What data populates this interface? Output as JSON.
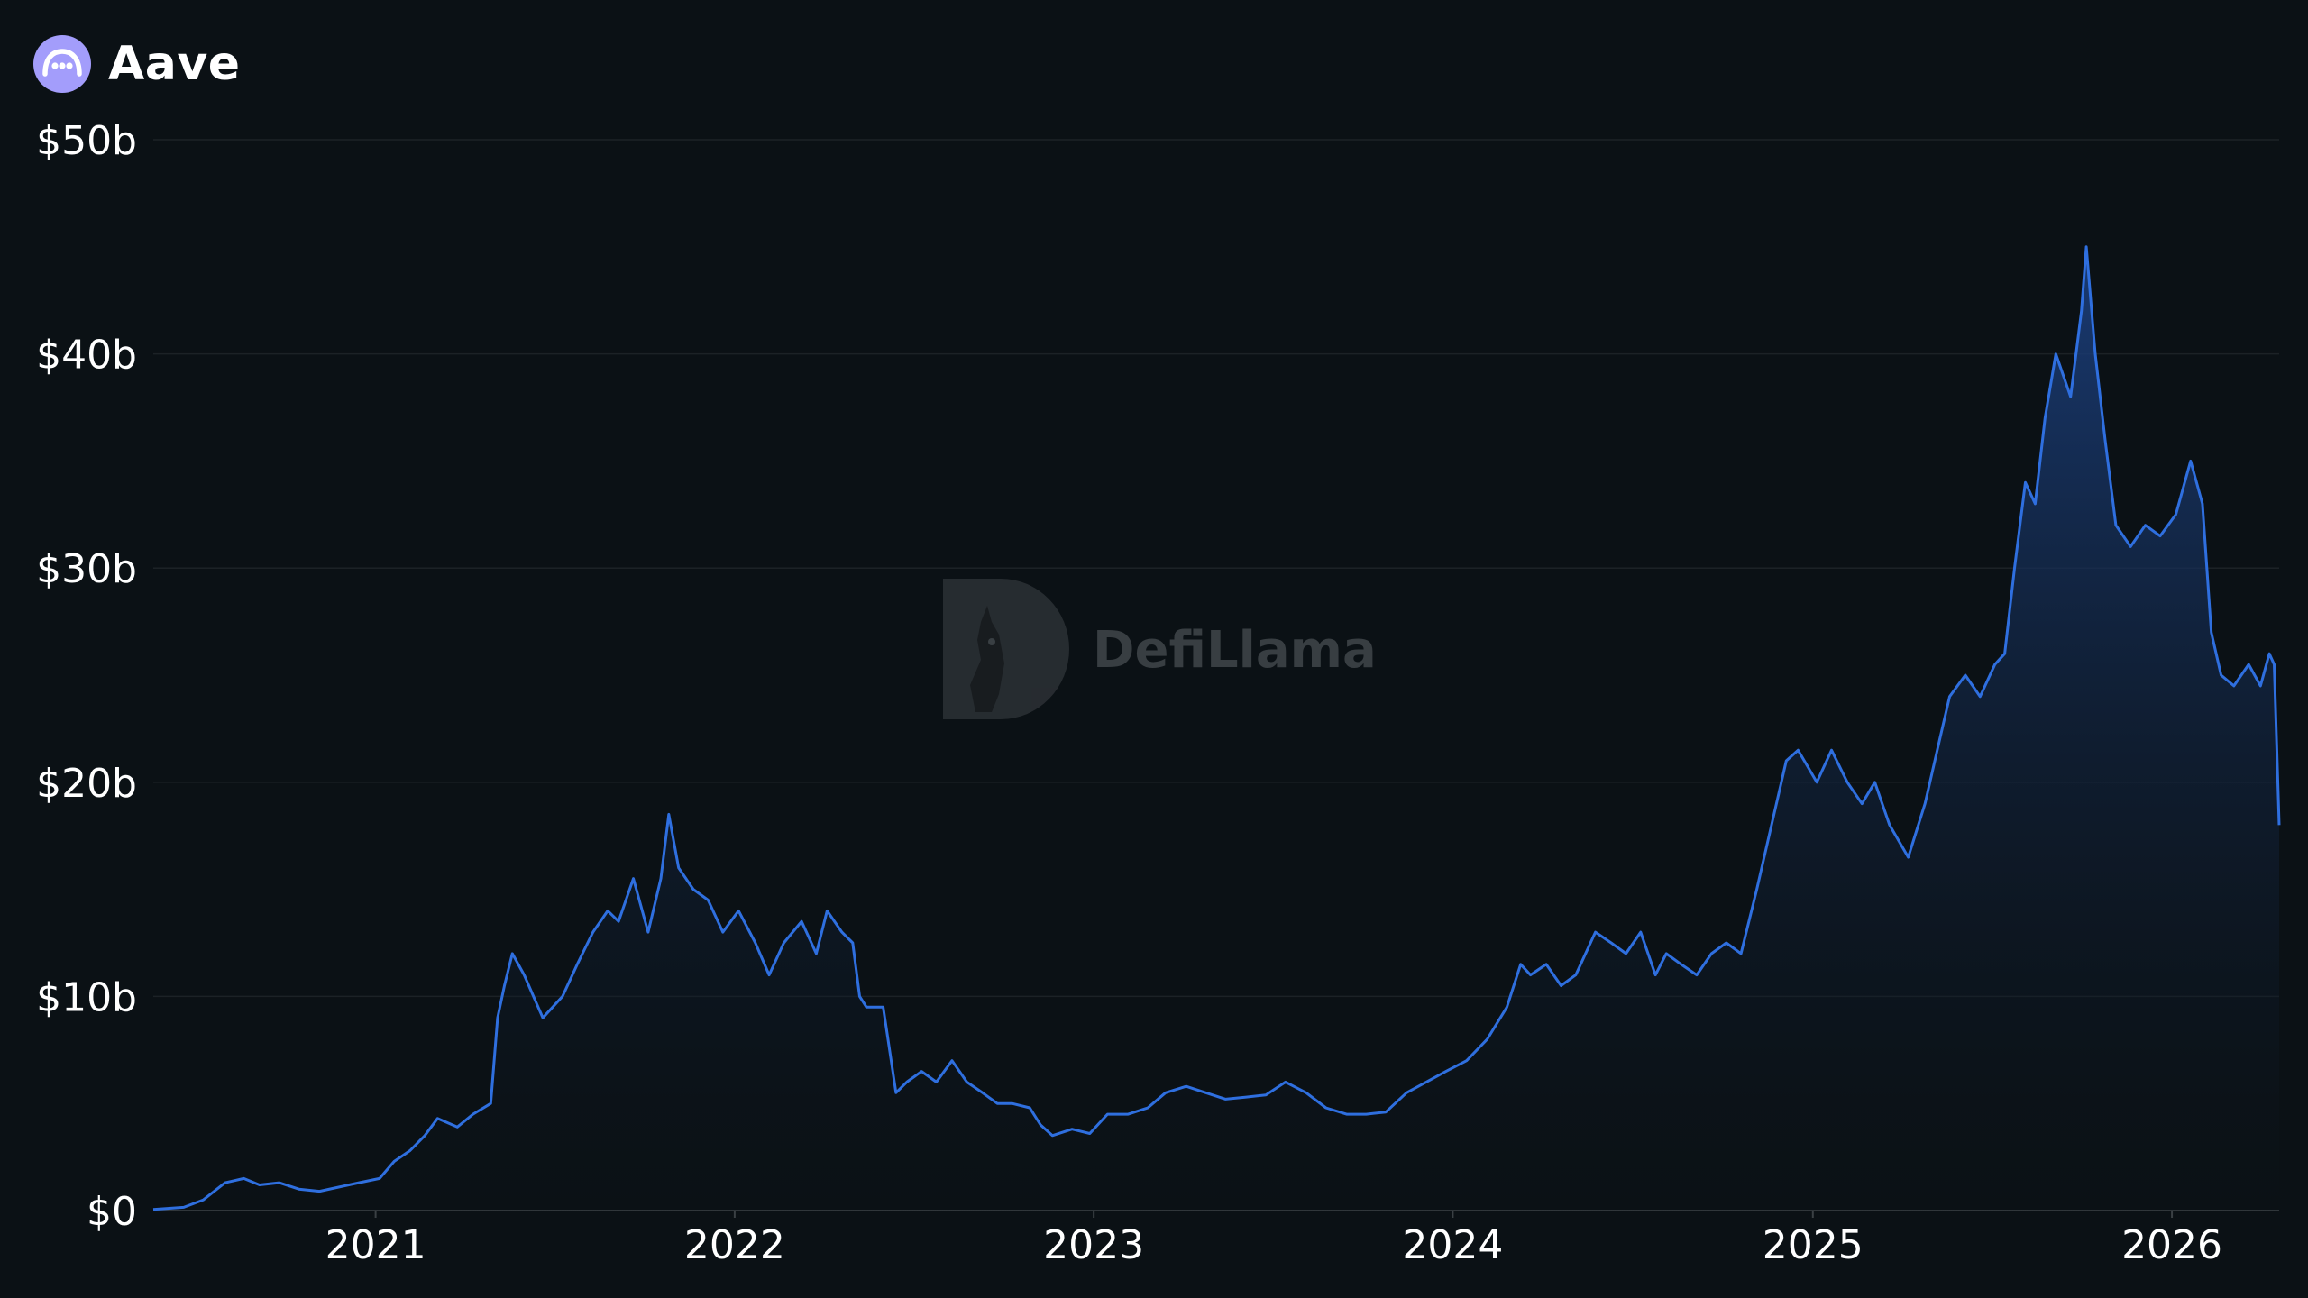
{
  "header": {
    "protocol_name": "Aave",
    "logo_icon": "aave-ghost-logo-icon",
    "logo_color": "#a39dfb"
  },
  "watermark": {
    "text": "DefiLlama",
    "icon": "defillama-llama-icon"
  },
  "colors": {
    "background": "#0b1115",
    "line": "#2f6fdf",
    "area_top": "#1b3f7e",
    "grid": "#1c2226"
  },
  "chart_data": {
    "type": "area",
    "title": "",
    "xlabel": "",
    "ylabel": "",
    "y_unit": "USD (billions)",
    "ylim": [
      0,
      50
    ],
    "xlim": [
      "2020-05-20",
      "2026-04-20"
    ],
    "grid": "horizontal",
    "legend": "none",
    "y_ticks": [
      {
        "value": 0,
        "label": "$0"
      },
      {
        "value": 10,
        "label": "$10b"
      },
      {
        "value": 20,
        "label": "$20b"
      },
      {
        "value": 30,
        "label": "$30b"
      },
      {
        "value": 40,
        "label": "$40b"
      },
      {
        "value": 50,
        "label": "$50b"
      }
    ],
    "x_ticks": [
      {
        "value": "2021-01-01",
        "label": "2021"
      },
      {
        "value": "2022-01-01",
        "label": "2022"
      },
      {
        "value": "2023-01-01",
        "label": "2023"
      },
      {
        "value": "2024-01-01",
        "label": "2024"
      },
      {
        "value": "2025-01-01",
        "label": "2025"
      },
      {
        "value": "2026-01-01",
        "label": "2026"
      }
    ],
    "series": [
      {
        "x": [
          "2020-05-20",
          "2020-06-20",
          "2020-07-10",
          "2020-08-01",
          "2020-08-20",
          "2020-09-05",
          "2020-09-25",
          "2020-10-15",
          "2020-11-05",
          "2020-11-25",
          "2020-12-15",
          "2021-01-05",
          "2021-01-20",
          "2021-02-05",
          "2021-02-20",
          "2021-03-05",
          "2021-03-25",
          "2021-04-10",
          "2021-04-28",
          "2021-05-05",
          "2021-05-12",
          "2021-05-20",
          "2021-06-01",
          "2021-06-20",
          "2021-07-10",
          "2021-07-25",
          "2021-08-10",
          "2021-08-25",
          "2021-09-05",
          "2021-09-20",
          "2021-10-05",
          "2021-10-18",
          "2021-10-26",
          "2021-11-05",
          "2021-11-20",
          "2021-12-05",
          "2021-12-20",
          "2022-01-05",
          "2022-01-22",
          "2022-02-05",
          "2022-02-20",
          "2022-03-10",
          "2022-03-25",
          "2022-04-05",
          "2022-04-20",
          "2022-05-01",
          "2022-05-08",
          "2022-05-15",
          "2022-06-01",
          "2022-06-14",
          "2022-06-25",
          "2022-07-10",
          "2022-07-25",
          "2022-08-10",
          "2022-08-25",
          "2022-09-10",
          "2022-09-25",
          "2022-10-10",
          "2022-10-28",
          "2022-11-08",
          "2022-11-20",
          "2022-12-10",
          "2022-12-28",
          "2023-01-15",
          "2023-02-05",
          "2023-02-25",
          "2023-03-15",
          "2023-04-05",
          "2023-04-25",
          "2023-05-15",
          "2023-06-05",
          "2023-06-25",
          "2023-07-15",
          "2023-08-05",
          "2023-08-25",
          "2023-09-15",
          "2023-10-05",
          "2023-10-25",
          "2023-11-15",
          "2023-12-05",
          "2023-12-25",
          "2024-01-15",
          "2024-02-05",
          "2024-02-25",
          "2024-03-10",
          "2024-03-20",
          "2024-04-05",
          "2024-04-20",
          "2024-05-05",
          "2024-05-25",
          "2024-06-10",
          "2024-06-25",
          "2024-07-10",
          "2024-07-25",
          "2024-08-05",
          "2024-08-20",
          "2024-09-05",
          "2024-09-20",
          "2024-10-05",
          "2024-10-20",
          "2024-11-05",
          "2024-11-15",
          "2024-11-25",
          "2024-12-05",
          "2024-12-17",
          "2025-01-05",
          "2025-01-20",
          "2025-02-05",
          "2025-02-20",
          "2025-03-05",
          "2025-03-20",
          "2025-04-08",
          "2025-04-25",
          "2025-05-10",
          "2025-05-20",
          "2025-06-05",
          "2025-06-20",
          "2025-07-05",
          "2025-07-15",
          "2025-07-25",
          "2025-08-05",
          "2025-08-15",
          "2025-08-25",
          "2025-09-05",
          "2025-09-20",
          "2025-10-01",
          "2025-10-06",
          "2025-10-15",
          "2025-10-25",
          "2025-11-05",
          "2025-11-20",
          "2025-12-05",
          "2025-12-20",
          "2026-01-05",
          "2026-01-20",
          "2026-02-01",
          "2026-02-10",
          "2026-02-20",
          "2026-03-05",
          "2026-03-20",
          "2026-04-01",
          "2026-04-10",
          "2026-04-15",
          "2026-04-20"
        ],
        "y": [
          0.05,
          0.15,
          0.5,
          1.3,
          1.5,
          1.2,
          1.3,
          1.0,
          0.9,
          1.1,
          1.3,
          1.5,
          2.3,
          2.8,
          3.5,
          4.3,
          3.9,
          4.5,
          5.0,
          9.0,
          10.5,
          12.0,
          11.0,
          9.0,
          10.0,
          11.5,
          13.0,
          14.0,
          13.5,
          15.5,
          13.0,
          15.5,
          18.5,
          16.0,
          15.0,
          14.5,
          13.0,
          14.0,
          12.5,
          11.0,
          12.5,
          13.5,
          12.0,
          14.0,
          13.0,
          12.5,
          10.0,
          9.5,
          9.5,
          5.5,
          6.0,
          6.5,
          6.0,
          7.0,
          6.0,
          5.5,
          5.0,
          5.0,
          4.8,
          4.0,
          3.5,
          3.8,
          3.6,
          4.5,
          4.5,
          4.8,
          5.5,
          5.8,
          5.5,
          5.2,
          5.3,
          5.4,
          6.0,
          5.5,
          4.8,
          4.5,
          4.5,
          4.6,
          5.5,
          6.0,
          6.5,
          7.0,
          8.0,
          9.5,
          11.5,
          11.0,
          11.5,
          10.5,
          11.0,
          13.0,
          12.5,
          12.0,
          13.0,
          11.0,
          12.0,
          11.5,
          11.0,
          12.0,
          12.5,
          12.0,
          15.0,
          17.0,
          19.0,
          21.0,
          21.5,
          20.0,
          21.5,
          20.0,
          19.0,
          20.0,
          18.0,
          16.5,
          19.0,
          22.0,
          24.0,
          25.0,
          24.0,
          25.5,
          26.0,
          30.0,
          34.0,
          33.0,
          37.0,
          40.0,
          38.0,
          42.0,
          45.0,
          40.0,
          36.0,
          32.0,
          31.0,
          32.0,
          31.5,
          32.5,
          35.0,
          33.0,
          27.0,
          25.0,
          24.5,
          25.5,
          24.5,
          26.0,
          25.5,
          18.0
        ]
      }
    ]
  }
}
